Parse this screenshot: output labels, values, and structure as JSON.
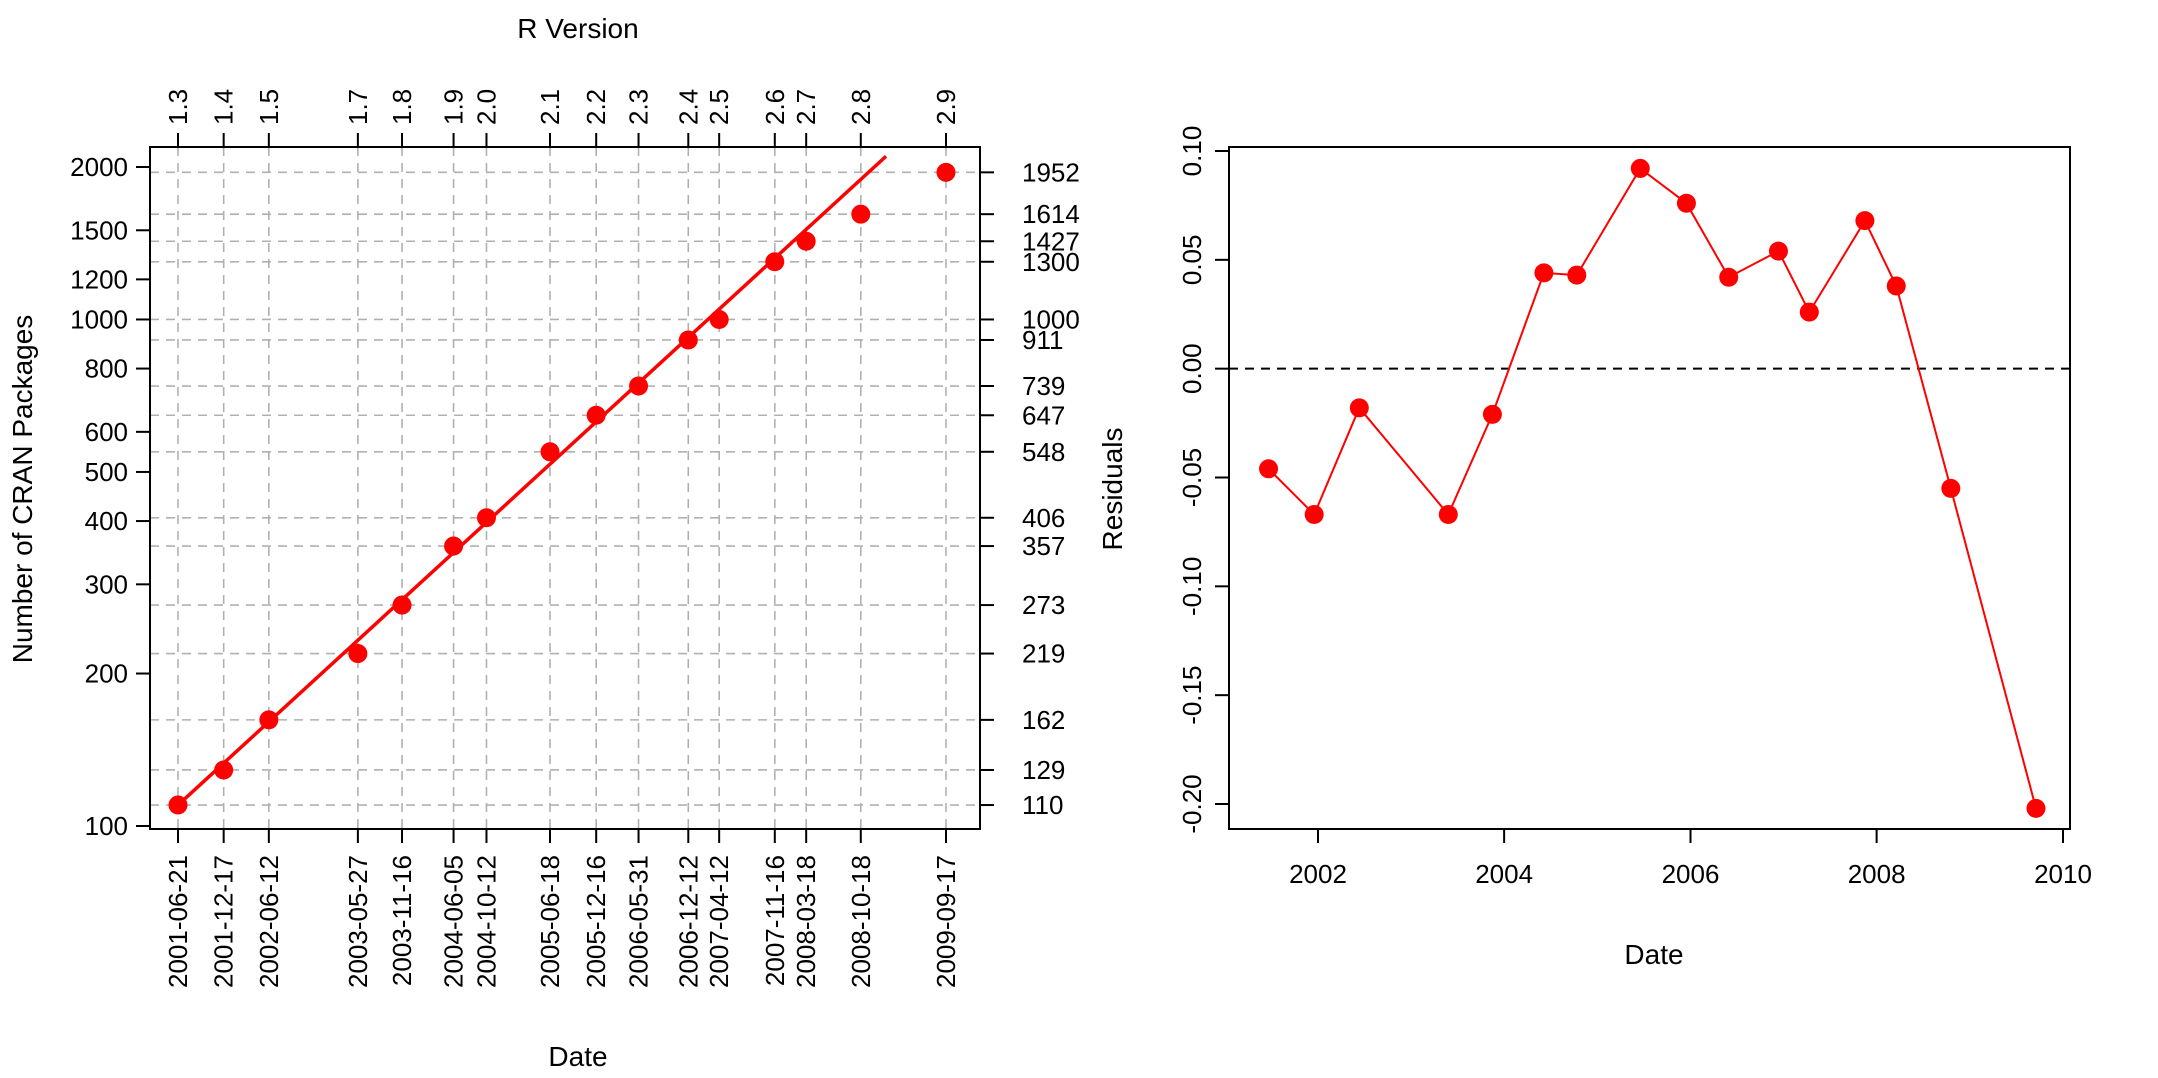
{
  "chart_data": [
    {
      "type": "scatter",
      "title": "",
      "xlabel": "Date",
      "ylabel": "Number of CRAN Packages",
      "top_axis_title": "R Version",
      "y_scale": "log",
      "ylim": [
        100,
        2000
      ],
      "y_ticks": [
        100,
        200,
        300,
        400,
        500,
        600,
        800,
        1000,
        1200,
        1500,
        2000
      ],
      "grid": true,
      "fit_line": {
        "color": "#ff0000",
        "start": [
          "2001-06-21",
          110
        ],
        "end": [
          "2009-01-25",
          2100
        ]
      },
      "points": [
        {
          "date": "2001-06-21",
          "version": "1.3",
          "packages": 110
        },
        {
          "date": "2001-12-17",
          "version": "1.4",
          "packages": 129
        },
        {
          "date": "2002-06-12",
          "version": "1.5",
          "packages": 162
        },
        {
          "date": "2003-05-27",
          "version": "1.7",
          "packages": 219
        },
        {
          "date": "2003-11-16",
          "version": "1.8",
          "packages": 273
        },
        {
          "date": "2004-06-05",
          "version": "1.9",
          "packages": 357
        },
        {
          "date": "2004-10-12",
          "version": "2.0",
          "packages": 406
        },
        {
          "date": "2005-06-18",
          "version": "2.1",
          "packages": 548
        },
        {
          "date": "2005-12-16",
          "version": "2.2",
          "packages": 647
        },
        {
          "date": "2006-05-31",
          "version": "2.3",
          "packages": 739
        },
        {
          "date": "2006-12-12",
          "version": "2.4",
          "packages": 911
        },
        {
          "date": "2007-04-12",
          "version": "2.5",
          "packages": 1000
        },
        {
          "date": "2007-11-16",
          "version": "2.6",
          "packages": 1300
        },
        {
          "date": "2008-03-18",
          "version": "2.7",
          "packages": 1427
        },
        {
          "date": "2008-10-18",
          "version": "2.8",
          "packages": 1614
        },
        {
          "date": "2009-09-17",
          "version": "2.9",
          "packages": 1952
        }
      ],
      "point_color": "#ff0000"
    },
    {
      "type": "line",
      "title": "",
      "xlabel": "Date",
      "ylabel": "Residuals",
      "xlim": [
        "2001-03-15",
        "2010-02-15"
      ],
      "ylim": [
        -0.21,
        0.105
      ],
      "x_ticks": [
        "2002",
        "2004",
        "2006",
        "2008",
        "2010"
      ],
      "y_ticks": [
        "0.10",
        "0.05",
        "0.00",
        "-0.05",
        "-0.10",
        "-0.15",
        "-0.20"
      ],
      "reference_line": 0,
      "color": "#ff0000",
      "points": [
        {
          "date": "2001-06-21",
          "residual": -0.046
        },
        {
          "date": "2001-12-17",
          "residual": -0.067
        },
        {
          "date": "2002-06-12",
          "residual": -0.018
        },
        {
          "date": "2003-05-27",
          "residual": -0.067
        },
        {
          "date": "2003-11-16",
          "residual": -0.021
        },
        {
          "date": "2004-06-05",
          "residual": 0.044
        },
        {
          "date": "2004-10-12",
          "residual": 0.043
        },
        {
          "date": "2005-06-18",
          "residual": 0.092
        },
        {
          "date": "2005-12-16",
          "residual": 0.076
        },
        {
          "date": "2006-05-31",
          "residual": 0.042
        },
        {
          "date": "2006-12-12",
          "residual": 0.054
        },
        {
          "date": "2007-04-12",
          "residual": 0.026
        },
        {
          "date": "2007-11-16",
          "residual": 0.068
        },
        {
          "date": "2008-03-18",
          "residual": 0.038
        },
        {
          "date": "2008-10-18",
          "residual": -0.055
        },
        {
          "date": "2009-09-17",
          "residual": -0.202
        }
      ]
    }
  ]
}
